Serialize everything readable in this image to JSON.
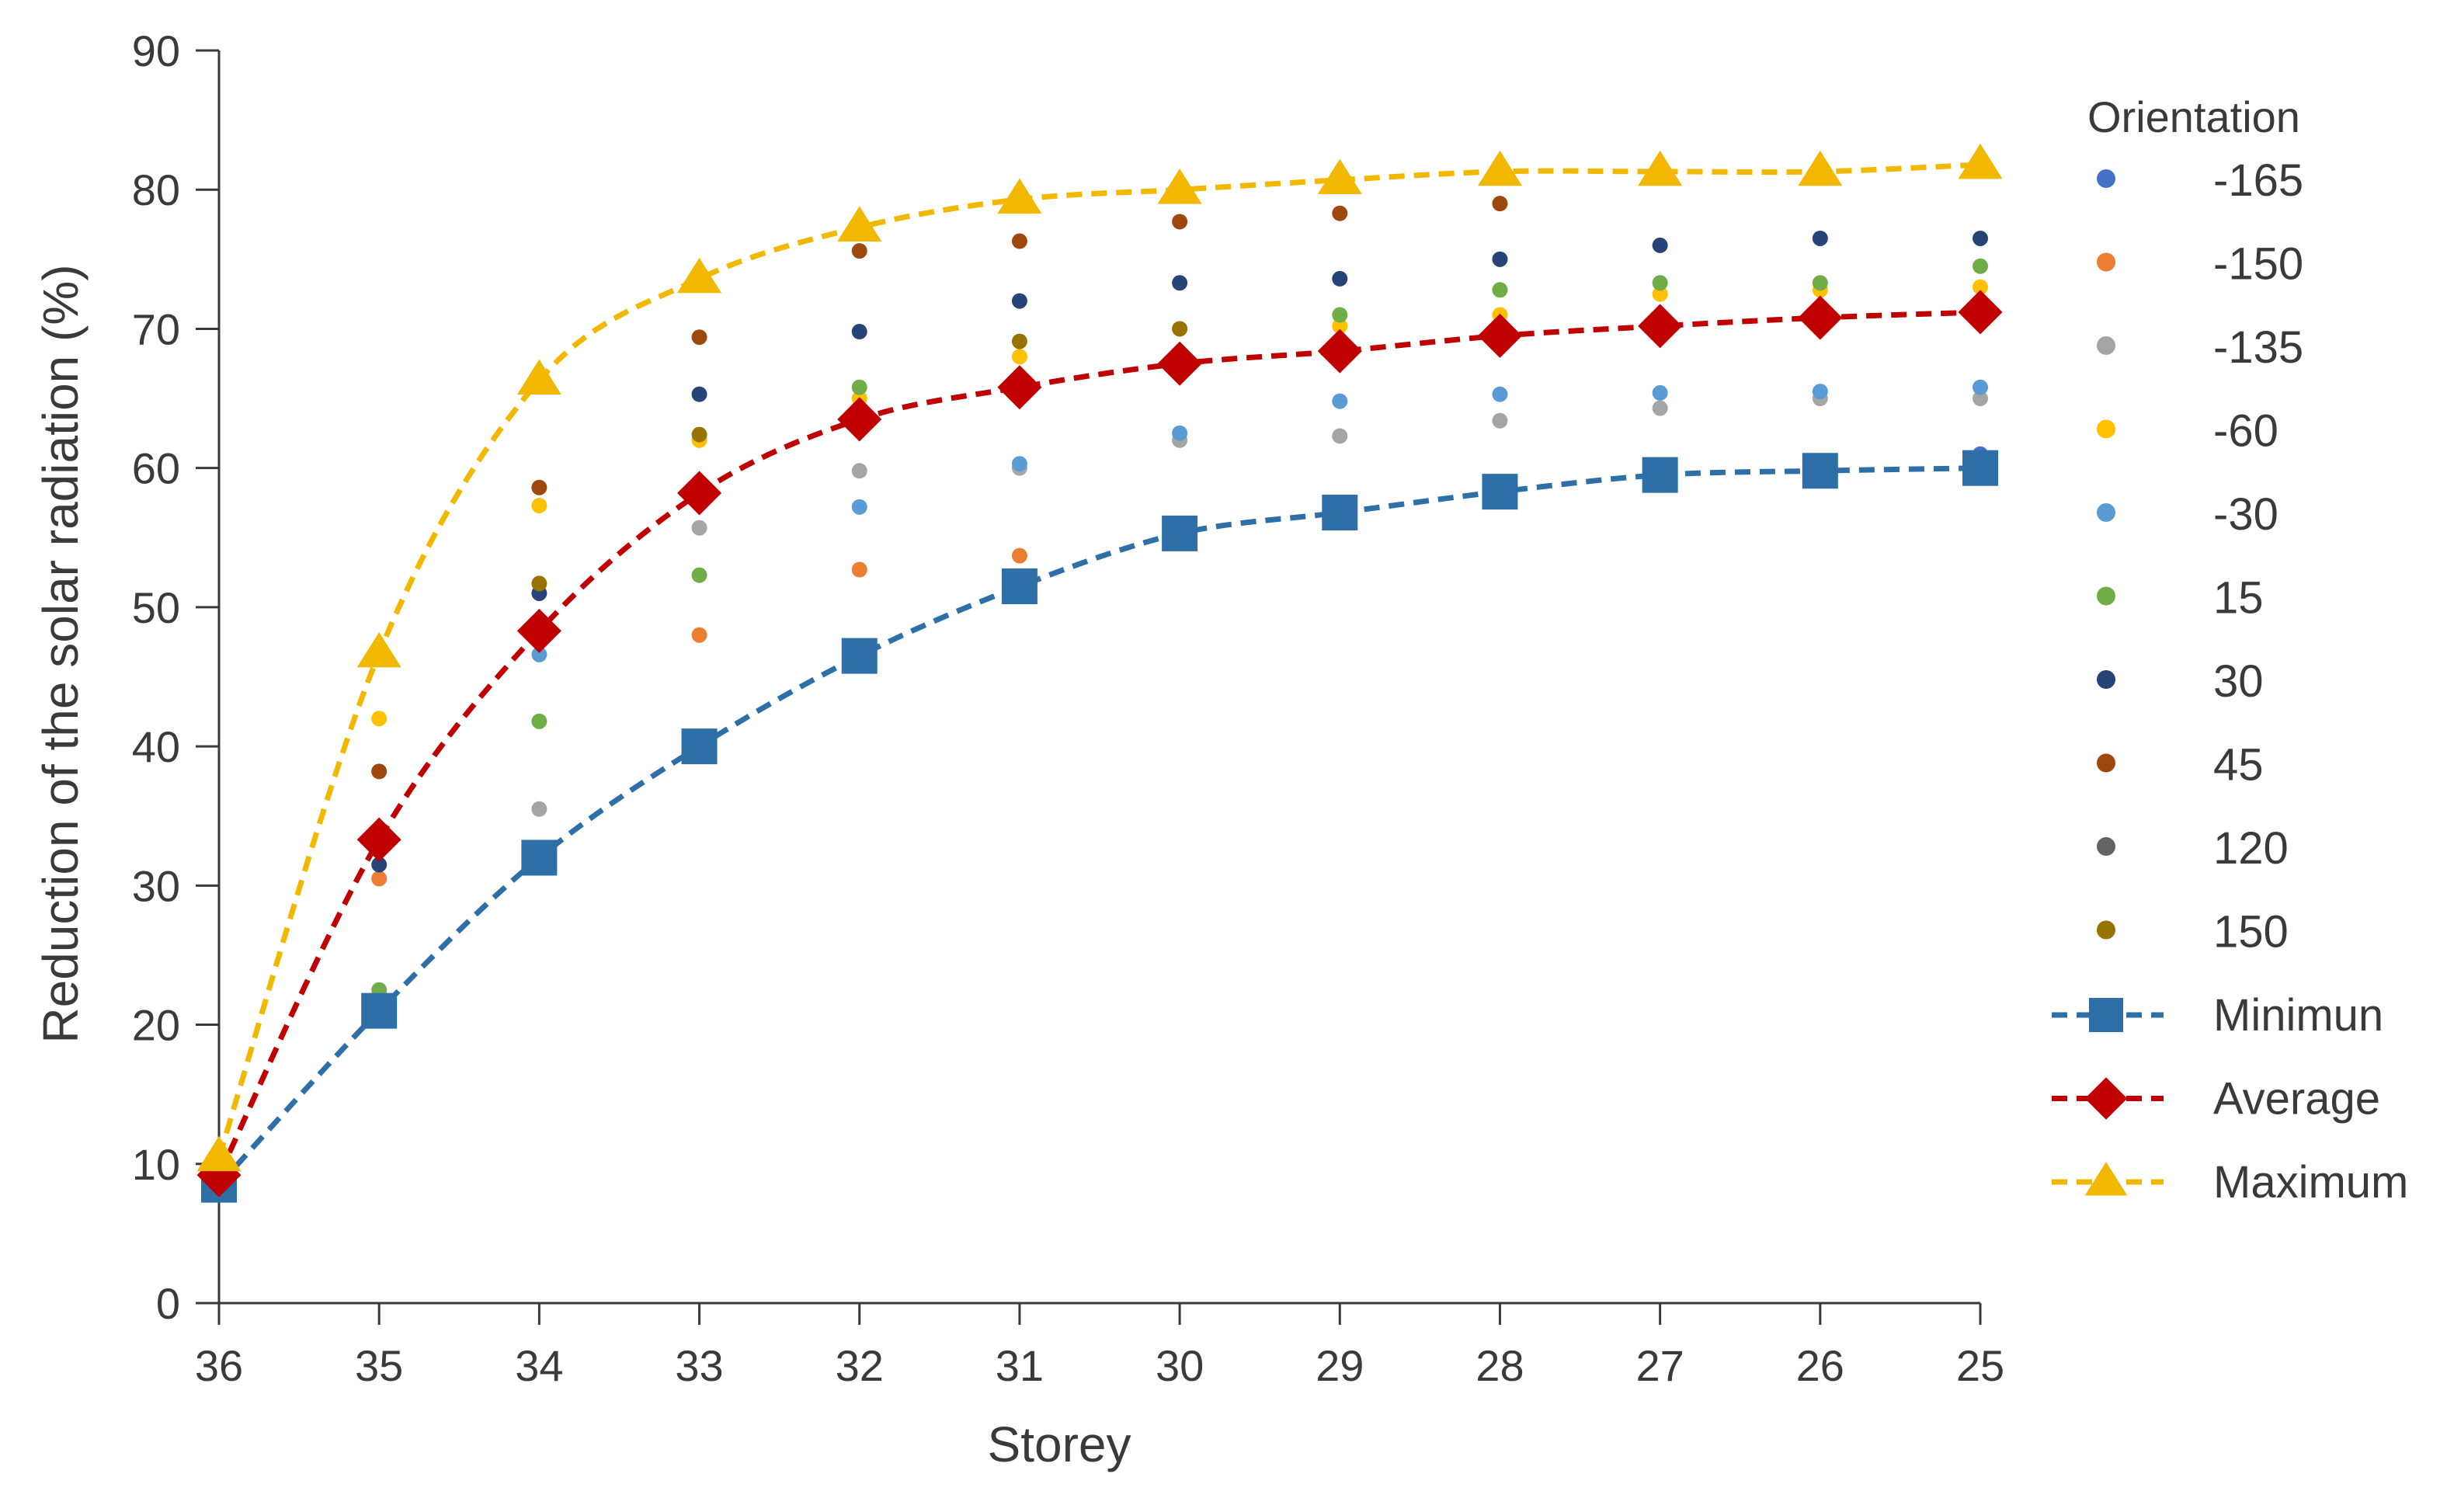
{
  "chart_data": {
    "type": "scatter",
    "xlabel": "Storey",
    "ylabel": "Reduction of the solar radiation (%)",
    "ylim": [
      0,
      90
    ],
    "y_ticks": [
      "0",
      "10",
      "20",
      "30",
      "40",
      "50",
      "60",
      "70",
      "80",
      "90"
    ],
    "categories": [
      "36",
      "35",
      "34",
      "33",
      "32",
      "31",
      "30",
      "29",
      "28",
      "27",
      "26",
      "25"
    ],
    "legend_title": "Orientation",
    "legend_position": "right",
    "grid": false,
    "series": [
      {
        "name": "-165",
        "style": "dot",
        "color": "#4472c4",
        "values": [
          null,
          null,
          null,
          null,
          null,
          null,
          null,
          null,
          null,
          null,
          null,
          61.0
        ]
      },
      {
        "name": "-150",
        "style": "dot",
        "color": "#ed7d31",
        "values": [
          null,
          30.5,
          null,
          48.0,
          52.7,
          53.7,
          null,
          null,
          null,
          null,
          null,
          null
        ]
      },
      {
        "name": "-135",
        "style": "dot",
        "color": "#a5a5a5",
        "values": [
          null,
          null,
          35.5,
          55.7,
          59.8,
          60.0,
          62.0,
          62.3,
          63.4,
          64.3,
          65.0,
          65.0
        ]
      },
      {
        "name": "-60",
        "style": "dot",
        "color": "#ffc000",
        "values": [
          null,
          42.0,
          57.3,
          62.0,
          65.0,
          68.0,
          70.0,
          70.2,
          71.0,
          72.5,
          72.8,
          73.0
        ]
      },
      {
        "name": "-30",
        "style": "dot",
        "color": "#5b9bd5",
        "values": [
          null,
          null,
          46.6,
          null,
          57.2,
          60.3,
          62.5,
          64.8,
          65.3,
          65.4,
          65.5,
          65.8
        ]
      },
      {
        "name": "15",
        "style": "dot",
        "color": "#70ad47",
        "values": [
          null,
          22.5,
          41.8,
          52.3,
          65.8,
          null,
          null,
          71.0,
          72.8,
          73.3,
          73.3,
          74.5
        ]
      },
      {
        "name": "30",
        "style": "dot",
        "color": "#264478",
        "values": [
          null,
          31.5,
          51.0,
          65.3,
          69.8,
          72.0,
          73.3,
          73.6,
          75.0,
          76.0,
          76.5,
          76.5
        ]
      },
      {
        "name": "45",
        "style": "dot",
        "color": "#9e480e",
        "values": [
          null,
          38.2,
          58.6,
          69.4,
          75.6,
          76.3,
          77.7,
          78.3,
          79.0,
          null,
          null,
          null
        ]
      },
      {
        "name": "120",
        "style": "dot",
        "color": "#636363",
        "values": [
          null,
          null,
          null,
          null,
          null,
          null,
          null,
          null,
          null,
          null,
          null,
          null
        ]
      },
      {
        "name": "150",
        "style": "dot",
        "color": "#997300",
        "values": [
          null,
          null,
          51.7,
          62.4,
          null,
          69.1,
          70.0,
          null,
          null,
          null,
          null,
          null
        ]
      },
      {
        "name": "Minimun",
        "style": "line",
        "marker": "square",
        "color": "#2e6fa8",
        "values": [
          8.5,
          21.0,
          32.0,
          40.0,
          46.5,
          51.5,
          55.3,
          56.8,
          58.3,
          59.5,
          59.8,
          60.0
        ]
      },
      {
        "name": "Average",
        "style": "line",
        "marker": "diamond",
        "color": "#c00000",
        "values": [
          9.2,
          33.3,
          48.3,
          58.2,
          63.5,
          65.8,
          67.5,
          68.4,
          69.5,
          70.2,
          70.8,
          71.2
        ]
      },
      {
        "name": "Maximum",
        "style": "line",
        "marker": "triangle",
        "color": "#f2b800",
        "values": [
          10.5,
          46.7,
          66.3,
          73.6,
          77.3,
          79.3,
          80.0,
          80.7,
          81.3,
          81.3,
          81.3,
          81.8
        ]
      }
    ]
  }
}
